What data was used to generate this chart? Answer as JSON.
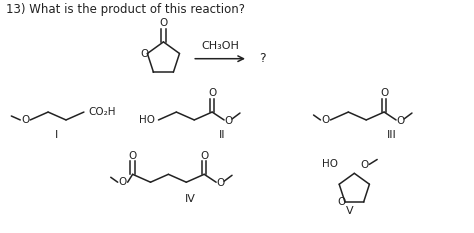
{
  "title": "13) What is the product of this reaction?",
  "reagent_label": "CH₃OH",
  "question_mark": "?",
  "labels": [
    "I",
    "II",
    "III",
    "IV",
    "V"
  ],
  "bg_color": "#ffffff",
  "line_color": "#222222",
  "text_color": "#222222",
  "title_fontsize": 8.5,
  "label_fontsize": 8,
  "struct_fontsize": 7.5
}
